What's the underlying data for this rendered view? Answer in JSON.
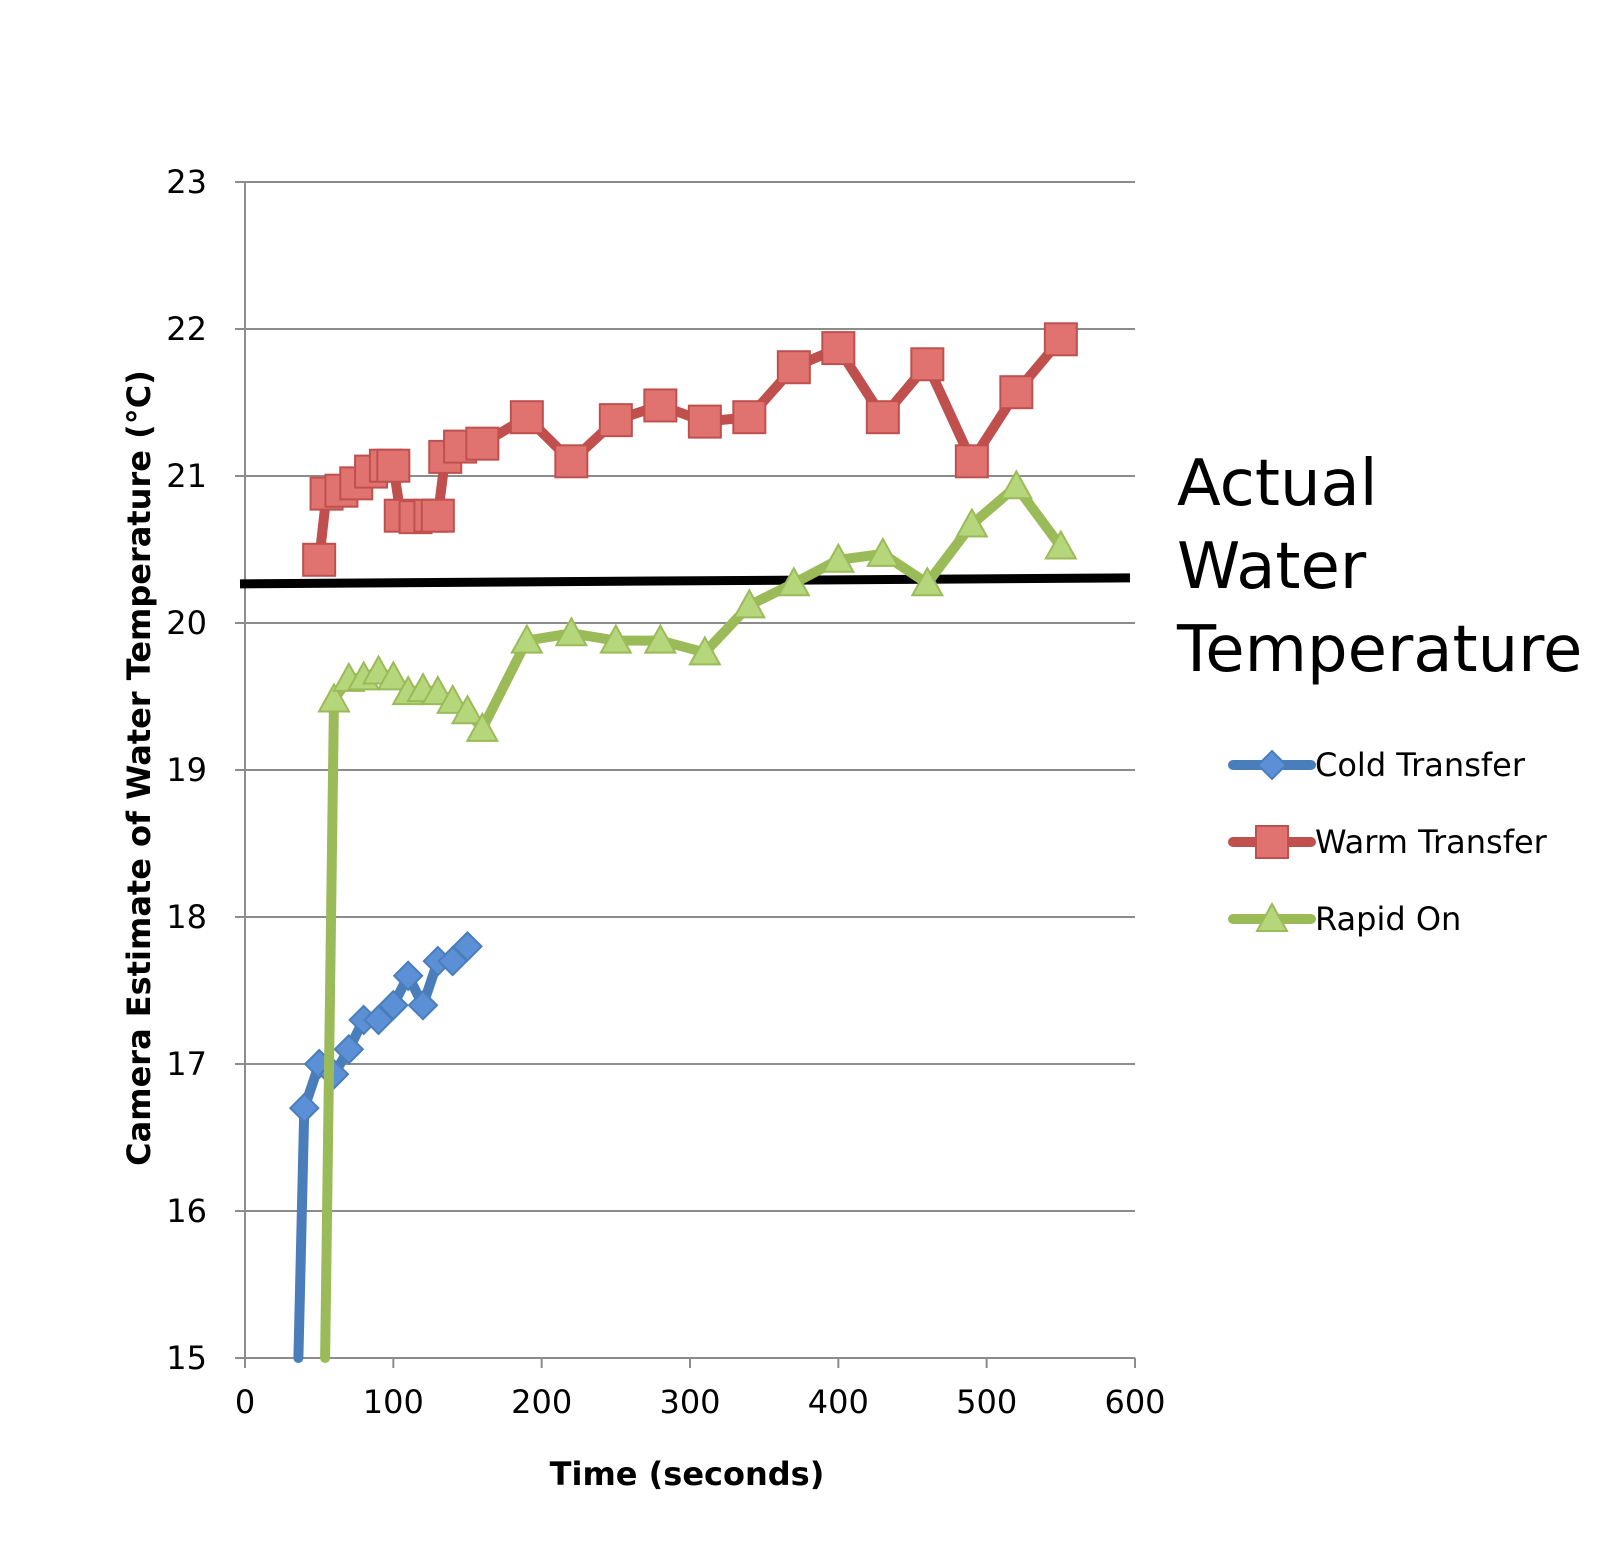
{
  "chart_data": {
    "type": "line",
    "title": "",
    "xlabel": "Time (seconds)",
    "ylabel": "Camera Estimate of Water Temperature (°C)",
    "xlim": [
      0,
      600
    ],
    "ylim": [
      15,
      23
    ],
    "x_ticks": [
      "0",
      "100",
      "200",
      "300",
      "400",
      "500",
      "600"
    ],
    "y_ticks": [
      "15",
      "16",
      "17",
      "18",
      "19",
      "20",
      "21",
      "22",
      "23"
    ],
    "grid": "horizontal",
    "legend_position": "right",
    "reference_line": {
      "label_lines": [
        "Actual",
        "Water",
        "Temperature"
      ],
      "y": 20.28,
      "color": "#000000"
    },
    "series": [
      {
        "name": "Cold Transfer",
        "marker": "diamond",
        "color": "#4a7ebb",
        "fill": "#5b8fd6",
        "points": [
          [
            36,
            15.0
          ],
          [
            40,
            16.7
          ],
          [
            50,
            17.0
          ],
          [
            60,
            16.93
          ],
          [
            70,
            17.1
          ],
          [
            80,
            17.3
          ],
          [
            90,
            17.3
          ],
          [
            100,
            17.4
          ],
          [
            110,
            17.6
          ],
          [
            120,
            17.4
          ],
          [
            130,
            17.7
          ],
          [
            140,
            17.7
          ],
          [
            150,
            17.8
          ]
        ]
      },
      {
        "name": "Warm Transfer",
        "marker": "square",
        "color": "#c0504d",
        "fill": "#e07370",
        "points": [
          [
            50,
            20.43
          ],
          [
            55,
            20.88
          ],
          [
            65,
            20.9
          ],
          [
            75,
            20.95
          ],
          [
            85,
            21.03
          ],
          [
            95,
            21.07
          ],
          [
            100,
            21.07
          ],
          [
            105,
            20.73
          ],
          [
            115,
            20.72
          ],
          [
            125,
            20.73
          ],
          [
            130,
            20.73
          ],
          [
            135,
            21.13
          ],
          [
            145,
            21.2
          ],
          [
            160,
            21.22
          ],
          [
            190,
            21.4
          ],
          [
            220,
            21.1
          ],
          [
            250,
            21.38
          ],
          [
            280,
            21.48
          ],
          [
            310,
            21.37
          ],
          [
            340,
            21.4
          ],
          [
            370,
            21.74
          ],
          [
            400,
            21.87
          ],
          [
            430,
            21.4
          ],
          [
            460,
            21.76
          ],
          [
            490,
            21.1
          ],
          [
            520,
            21.57
          ],
          [
            550,
            21.93
          ]
        ]
      },
      {
        "name": "Rapid On",
        "marker": "triangle",
        "color": "#9bbb59",
        "fill": "#b5d67a",
        "points": [
          [
            54,
            15.0
          ],
          [
            60,
            19.48
          ],
          [
            70,
            19.62
          ],
          [
            80,
            19.63
          ],
          [
            90,
            19.67
          ],
          [
            100,
            19.63
          ],
          [
            110,
            19.53
          ],
          [
            120,
            19.55
          ],
          [
            130,
            19.53
          ],
          [
            140,
            19.47
          ],
          [
            150,
            19.4
          ],
          [
            160,
            19.28
          ],
          [
            190,
            19.88
          ],
          [
            220,
            19.93
          ],
          [
            250,
            19.88
          ],
          [
            280,
            19.88
          ],
          [
            310,
            19.8
          ],
          [
            340,
            20.12
          ],
          [
            370,
            20.27
          ],
          [
            400,
            20.43
          ],
          [
            430,
            20.47
          ],
          [
            460,
            20.27
          ],
          [
            490,
            20.67
          ],
          [
            520,
            20.93
          ],
          [
            550,
            20.52
          ]
        ]
      }
    ]
  }
}
